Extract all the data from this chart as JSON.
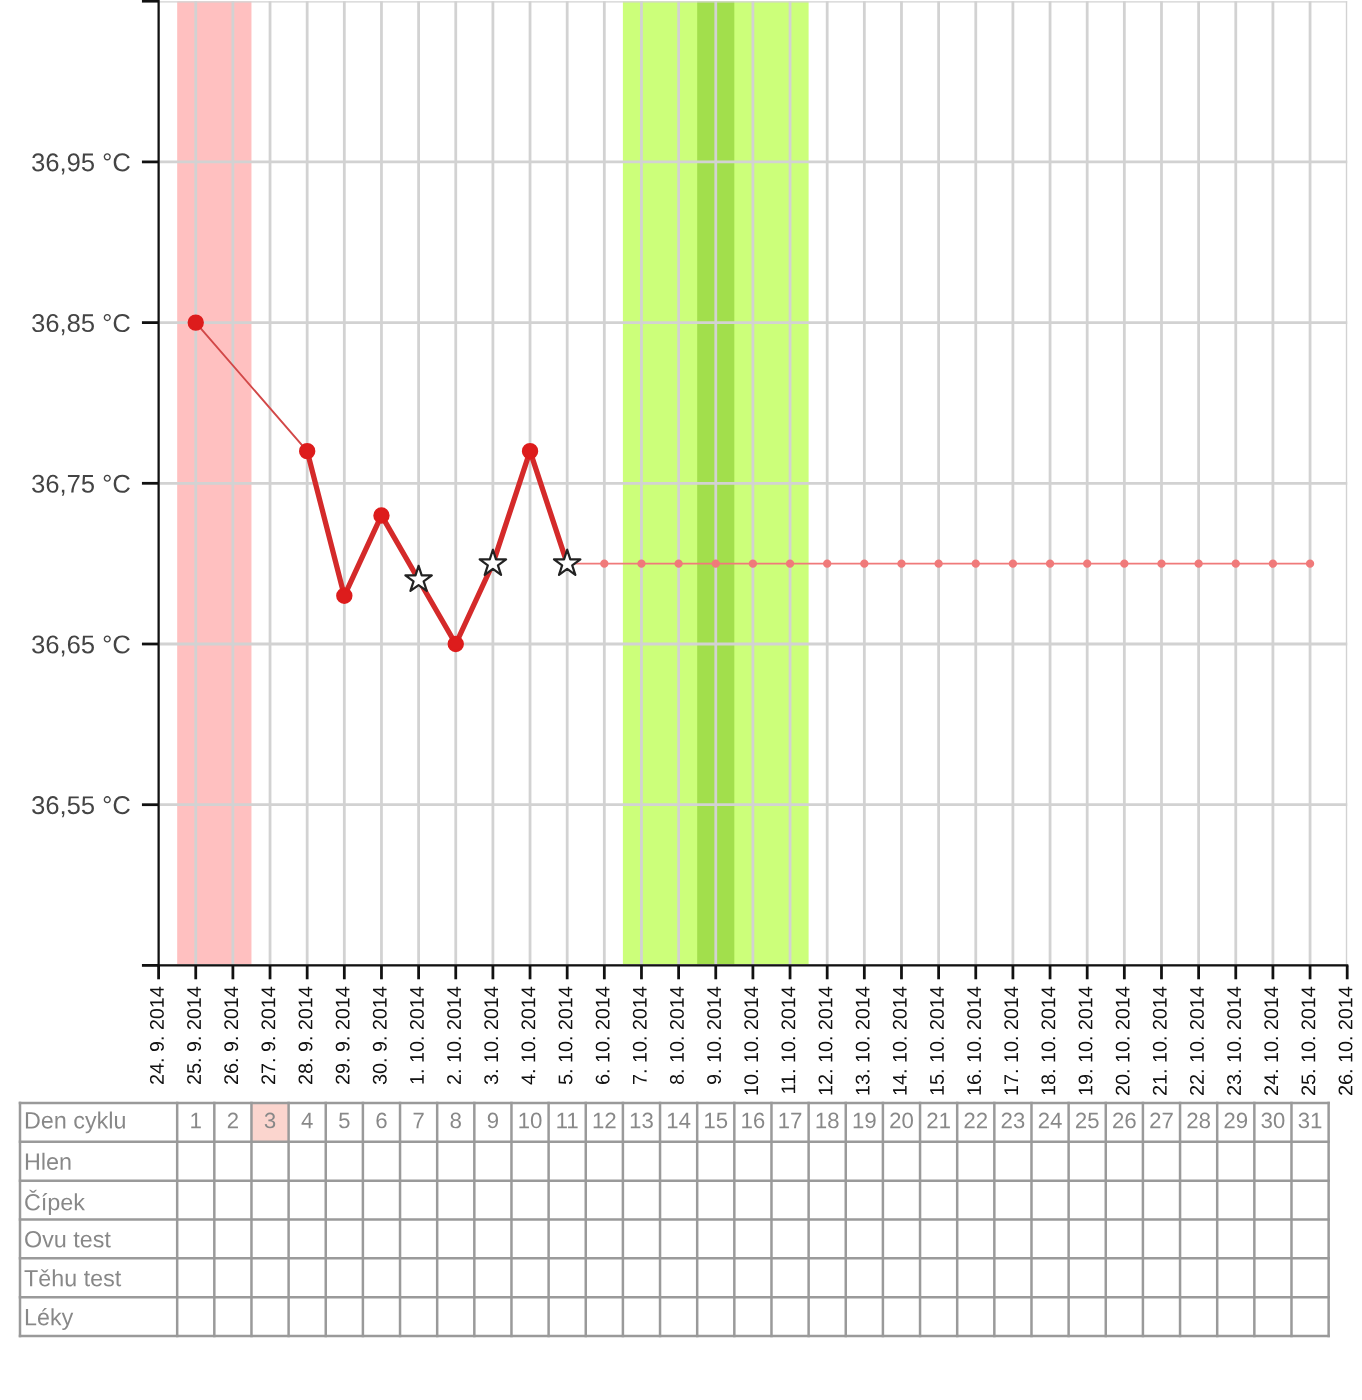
{
  "chart_data": [
    {
      "type": "line",
      "xlim": [
        "2014-09-24",
        "2014-10-26"
      ],
      "xticks": [
        {
          "value": "2014-09-24",
          "label": "24. 9. 2014"
        },
        {
          "value": "2014-09-25",
          "label": "25. 9. 2014"
        },
        {
          "value": "2014-09-26",
          "label": "26. 9. 2014"
        },
        {
          "value": "2014-09-27",
          "label": "27. 9. 2014"
        },
        {
          "value": "2014-09-28",
          "label": "28. 9. 2014"
        },
        {
          "value": "2014-09-29",
          "label": "29. 9. 2014"
        },
        {
          "value": "2014-09-30",
          "label": "30. 9. 2014"
        },
        {
          "value": "2014-10-01",
          "label": "1. 10. 2014"
        },
        {
          "value": "2014-10-02",
          "label": "2. 10. 2014"
        },
        {
          "value": "2014-10-03",
          "label": "3. 10. 2014"
        },
        {
          "value": "2014-10-04",
          "label": "4. 10. 2014"
        },
        {
          "value": "2014-10-05",
          "label": "5. 10. 2014"
        },
        {
          "value": "2014-10-06",
          "label": "6. 10. 2014"
        },
        {
          "value": "2014-10-07",
          "label": "7. 10. 2014"
        },
        {
          "value": "2014-10-08",
          "label": "8. 10. 2014"
        },
        {
          "value": "2014-10-09",
          "label": "9. 10. 2014"
        },
        {
          "value": "2014-10-10",
          "label": "10. 10. 2014"
        },
        {
          "value": "2014-10-11",
          "label": "11. 10. 2014"
        },
        {
          "value": "2014-10-12",
          "label": "12. 10. 2014"
        },
        {
          "value": "2014-10-13",
          "label": "13. 10. 2014"
        },
        {
          "value": "2014-10-14",
          "label": "14. 10. 2014"
        },
        {
          "value": "2014-10-15",
          "label": "15. 10. 2014"
        },
        {
          "value": "2014-10-16",
          "label": "16. 10. 2014"
        },
        {
          "value": "2014-10-17",
          "label": "17. 10. 2014"
        },
        {
          "value": "2014-10-18",
          "label": "18. 10. 2014"
        },
        {
          "value": "2014-10-19",
          "label": "19. 10. 2014"
        },
        {
          "value": "2014-10-20",
          "label": "20. 10. 2014"
        },
        {
          "value": "2014-10-21",
          "label": "21. 10. 2014"
        },
        {
          "value": "2014-10-22",
          "label": "22. 10. 2014"
        },
        {
          "value": "2014-10-23",
          "label": "23. 10. 2014"
        },
        {
          "value": "2014-10-24",
          "label": "24. 10. 2014"
        },
        {
          "value": "2014-10-25",
          "label": "25. 10. 2014"
        },
        {
          "value": "2014-10-26",
          "label": "26. 10. 2014"
        }
      ],
      "ylim": [
        36.45,
        37.05
      ],
      "yticks": [
        {
          "value": 36.45,
          "label": null
        },
        {
          "value": 36.55,
          "label": "36,55 °C"
        },
        {
          "value": 36.65,
          "label": "36,65 °C"
        },
        {
          "value": 36.75,
          "label": "36,75 °C"
        },
        {
          "value": 36.85,
          "label": "36,85 °C"
        },
        {
          "value": 36.95,
          "label": "36,95 °C"
        },
        {
          "value": 37.05,
          "label": null
        }
      ],
      "grid": true,
      "bands": [
        {
          "axis": "x",
          "from": "2014-09-24T12:00",
          "to": "2014-09-26T12:00",
          "color": "#ffc0c0"
        },
        {
          "axis": "x",
          "from": "2014-10-06T12:00",
          "to": "2014-10-11T12:00",
          "color": "#ccff7a"
        },
        {
          "axis": "x",
          "from": "2014-10-08T12:00",
          "to": "2014-10-09T12:00",
          "color": "#a2df4c"
        }
      ],
      "series": [
        {
          "type": "line",
          "color": "#d24848",
          "x": [
            "2014-09-25",
            "2014-09-28"
          ],
          "values": [
            36.85,
            36.77
          ]
        },
        {
          "type": "line",
          "color": "#d42a2a",
          "x": [
            "2014-09-28",
            "2014-09-29",
            "2014-09-30",
            "2014-10-01",
            "2014-10-02",
            "2014-10-03",
            "2014-10-04",
            "2014-10-05"
          ],
          "values": [
            36.77,
            36.68,
            36.73,
            36.69,
            36.65,
            36.7,
            36.77,
            36.7
          ]
        },
        {
          "type": "line",
          "color": "#f07a7a",
          "marker": "circle",
          "x": [
            "2014-10-05",
            "2014-10-06",
            "2014-10-07",
            "2014-10-08",
            "2014-10-09",
            "2014-10-10",
            "2014-10-11",
            "2014-10-12",
            "2014-10-13",
            "2014-10-14",
            "2014-10-15",
            "2014-10-16",
            "2014-10-17",
            "2014-10-18",
            "2014-10-19",
            "2014-10-20",
            "2014-10-21",
            "2014-10-22",
            "2014-10-23",
            "2014-10-24",
            "2014-10-25"
          ],
          "values": [
            36.7,
            36.7,
            36.7,
            36.7,
            36.7,
            36.7,
            36.7,
            36.7,
            36.7,
            36.7,
            36.7,
            36.7,
            36.7,
            36.7,
            36.7,
            36.7,
            36.7,
            36.7,
            36.7,
            36.7,
            36.7
          ]
        },
        {
          "type": "scatter",
          "color": "#dd1c1c",
          "marker": "circle",
          "x": [
            "2014-09-25",
            "2014-09-28",
            "2014-09-29",
            "2014-09-30",
            "2014-10-02",
            "2014-10-04"
          ],
          "values": [
            36.85,
            36.77,
            36.68,
            36.73,
            36.65,
            36.77
          ]
        },
        {
          "type": "scatter",
          "color": "#ffffff",
          "marker": "star",
          "x": [
            "2014-10-01",
            "2014-10-03",
            "2014-10-05"
          ],
          "values": [
            36.69,
            36.7,
            36.7
          ]
        }
      ]
    },
    {
      "type": "heatmap",
      "xlabel": "Den cyklu",
      "categories": [
        "1",
        "2",
        "3",
        "4",
        "5",
        "6",
        "7",
        "8",
        "9",
        "10",
        "11",
        "12",
        "13",
        "14",
        "15",
        "16",
        "17",
        "18",
        "19",
        "20",
        "21",
        "22",
        "23",
        "24",
        "25",
        "26",
        "27",
        "28",
        "29",
        "30",
        "31"
      ],
      "y_categories": [
        "Hlen",
        "Čípek",
        "Ovu test",
        "Těhu test",
        "Léky"
      ],
      "bands": [
        {
          "axis": "x",
          "from": "3",
          "to": "3",
          "color": "#fbd5ce"
        }
      ],
      "cells": [
        [
          null,
          null,
          null,
          null,
          null,
          null,
          null,
          null,
          null,
          null,
          null,
          null,
          null,
          null,
          null,
          null,
          null,
          null,
          null,
          null,
          null,
          null,
          null,
          null,
          null,
          null,
          null,
          null,
          null,
          null,
          null
        ],
        [
          null,
          null,
          null,
          null,
          null,
          null,
          null,
          null,
          null,
          null,
          null,
          null,
          null,
          null,
          null,
          null,
          null,
          null,
          null,
          null,
          null,
          null,
          null,
          null,
          null,
          null,
          null,
          null,
          null,
          null,
          null
        ],
        [
          null,
          null,
          null,
          null,
          null,
          null,
          null,
          null,
          null,
          null,
          null,
          null,
          null,
          null,
          null,
          null,
          null,
          null,
          null,
          null,
          null,
          null,
          null,
          null,
          null,
          null,
          null,
          null,
          null,
          null,
          null
        ],
        [
          null,
          null,
          null,
          null,
          null,
          null,
          null,
          null,
          null,
          null,
          null,
          null,
          null,
          null,
          null,
          null,
          null,
          null,
          null,
          null,
          null,
          null,
          null,
          null,
          null,
          null,
          null,
          null,
          null,
          null,
          null
        ],
        [
          null,
          null,
          null,
          null,
          null,
          null,
          null,
          null,
          null,
          null,
          null,
          null,
          null,
          null,
          null,
          null,
          null,
          null,
          null,
          null,
          null,
          null,
          null,
          null,
          null,
          null,
          null,
          null,
          null,
          null,
          null
        ]
      ]
    }
  ]
}
